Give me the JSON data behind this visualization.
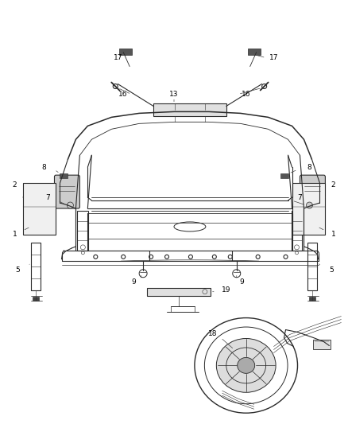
{
  "background_color": "#ffffff",
  "line_color": "#2a2a2a",
  "label_color": "#000000",
  "figsize": [
    4.38,
    5.33
  ],
  "dpi": 100
}
